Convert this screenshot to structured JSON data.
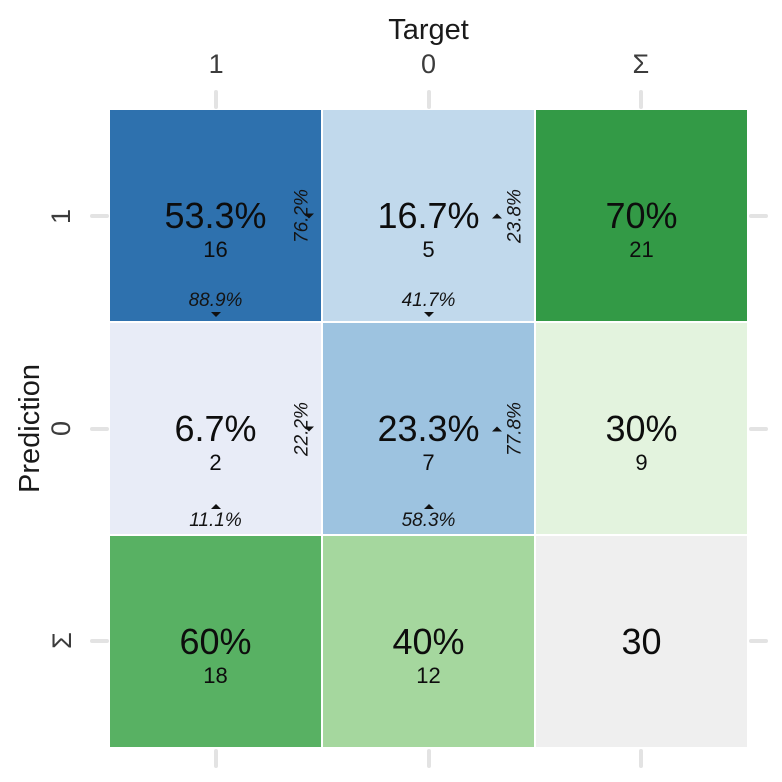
{
  "axis_titles": {
    "x": "Target",
    "y": "Prediction"
  },
  "axis": {
    "col_ticks": [
      "1",
      "0",
      "Σ"
    ],
    "row_ticks": [
      "1",
      "0",
      "Σ"
    ]
  },
  "cells": {
    "r1c1": {
      "pct": "53.3%",
      "count": "16",
      "row_pct": "76.2%",
      "col_pct": "88.9%"
    },
    "r1c0": {
      "pct": "16.7%",
      "count": "5",
      "row_pct": "23.8%",
      "col_pct": "41.7%"
    },
    "r1cs": {
      "pct": "70%",
      "count": "21"
    },
    "r0c1": {
      "pct": "6.7%",
      "count": "2",
      "row_pct": "22.2%",
      "col_pct": "11.1%"
    },
    "r0c0": {
      "pct": "23.3%",
      "count": "7",
      "row_pct": "77.8%",
      "col_pct": "58.3%"
    },
    "r0cs": {
      "pct": "30%",
      "count": "9"
    },
    "rsc1": {
      "pct": "60%",
      "count": "18"
    },
    "rsc0": {
      "pct": "40%",
      "count": "12"
    },
    "rscs": {
      "pct": "30"
    }
  },
  "colors": {
    "r1c1": "#2e71ae",
    "r1c0": "#c1d9ec",
    "r1cs": "#339a46",
    "r0c1": "#e8ecf7",
    "r0c0": "#9dc3e0",
    "r0cs": "#e3f3de",
    "rsc1": "#58b163",
    "rsc0": "#a5d79e",
    "rscs": "#efefef",
    "tick_mark": "#e3e3e3",
    "axis_text": "#3c3c3c",
    "title_text": "#1a1a1a"
  },
  "chart_data": {
    "type": "heatmap",
    "subtype": "confusion_matrix",
    "x_axis_label": "Target",
    "y_axis_label": "Prediction",
    "x_categories": [
      "1",
      "0",
      "Σ"
    ],
    "y_categories": [
      "1",
      "0",
      "Σ"
    ],
    "counts_matrix_rows_pred_1_0_sum": [
      [
        16,
        5,
        21
      ],
      [
        2,
        7,
        9
      ],
      [
        18,
        12,
        30
      ]
    ],
    "total_percent_matrix": [
      [
        "53.3%",
        "16.7%",
        "70%"
      ],
      [
        "6.7%",
        "23.3%",
        "30%"
      ],
      [
        "60%",
        "40%",
        ""
      ]
    ],
    "row_percentages": {
      "pred1": [
        "76.2%",
        "23.8%"
      ],
      "pred0": [
        "22.2%",
        "77.8%"
      ]
    },
    "column_percentages": {
      "target1": [
        "88.9%",
        "11.1%"
      ],
      "target0": [
        "41.7%",
        "58.3%"
      ]
    },
    "total_n": 30,
    "legend": "none",
    "grid": "off"
  }
}
